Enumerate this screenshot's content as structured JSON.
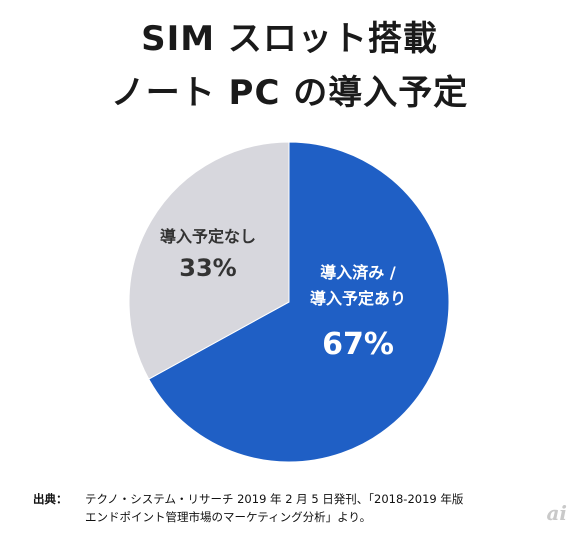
{
  "title_lines": [
    "SIM スロット搭載",
    "ノート PC の導入予定"
  ],
  "chart_data": {
    "type": "pie",
    "title": "SIM スロット搭載 ノート PC の導入予定",
    "slices": [
      {
        "label_lines": [
          "導入済み /",
          "導入予定あり"
        ],
        "value": 67,
        "display": "67%",
        "color": "#1f5fc5",
        "label_color": "#ffffff"
      },
      {
        "label_lines": [
          "導入予定なし"
        ],
        "value": 33,
        "display": "33%",
        "color": "#d7d7dd",
        "label_color": "#333333"
      }
    ],
    "start": "12 o'clock",
    "direction": "clockwise"
  },
  "source": {
    "prefix": "出典：",
    "line1": "テクノ・システム・リサーチ 2019 年 2 月 5 日発刊、「2018-2019 年版",
    "line2": "エンドポイント管理市場のマーケティング分析」より。"
  }
}
